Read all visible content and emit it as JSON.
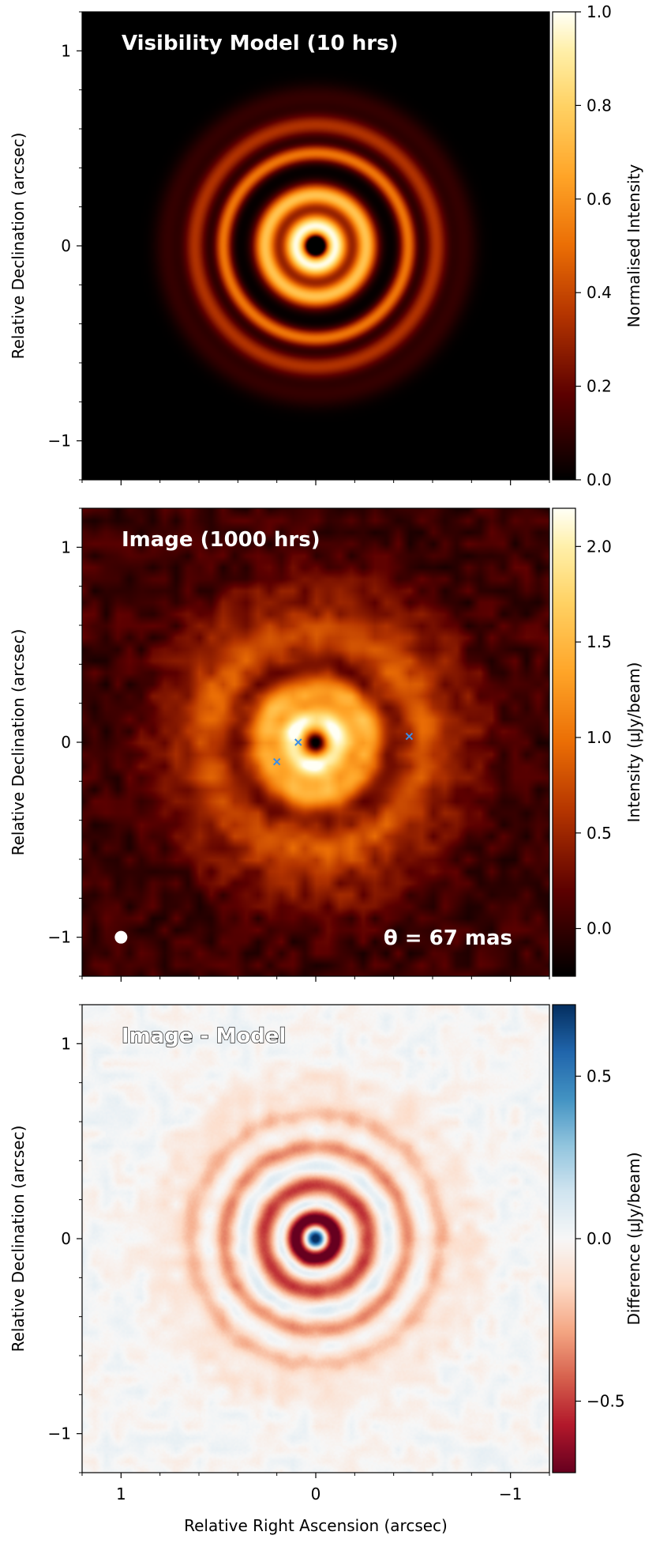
{
  "chart_data": [
    {
      "type": "heatmap",
      "title": "Visibility Model (10 hrs)",
      "xlabel": "",
      "ylabel": "Relative Declination (arcsec)",
      "xlim": [
        1.2,
        -1.2
      ],
      "ylim": [
        -1.2,
        1.2
      ],
      "yticks": [
        1,
        0,
        -1
      ],
      "ytick_labels": [
        "1",
        "0",
        "−1"
      ],
      "colormap": "afmhot",
      "colorbar": {
        "label": "Normalised Intensity",
        "range": [
          0.0,
          1.0
        ],
        "ticks": [
          0.0,
          0.2,
          0.4,
          0.6,
          0.8,
          1.0
        ],
        "tick_labels": [
          "0.0",
          "0.2",
          "0.4",
          "0.6",
          "0.8",
          "1.0"
        ]
      },
      "rings": [
        {
          "radius": 0.0,
          "width": 0.035,
          "amplitude": -1.0
        },
        {
          "radius": 0.1,
          "width": 0.045,
          "amplitude": 1.0
        },
        {
          "radius": 0.26,
          "width": 0.04,
          "amplitude": 0.75
        },
        {
          "radius": 0.475,
          "width": 0.03,
          "amplitude": 0.52
        },
        {
          "radius": 0.62,
          "width": 0.04,
          "amplitude": 0.34
        },
        {
          "radius": 0.76,
          "width": 0.05,
          "amplitude": 0.1
        }
      ]
    },
    {
      "type": "heatmap",
      "title": "Image (1000 hrs)",
      "xlabel": "",
      "ylabel": "Relative Declination (arcsec)",
      "xlim": [
        1.2,
        -1.2
      ],
      "ylim": [
        -1.2,
        1.2
      ],
      "yticks": [
        1,
        0,
        -1
      ],
      "ytick_labels": [
        "1",
        "0",
        "−1"
      ],
      "colormap": "afmhot",
      "colorbar": {
        "label": "Intensity (μJy/beam)",
        "range": [
          -0.25,
          2.2
        ],
        "ticks": [
          0.0,
          0.5,
          1.0,
          1.5,
          2.0
        ],
        "tick_labels": [
          "0.0",
          "0.5",
          "1.0",
          "1.5",
          "2.0"
        ]
      },
      "rings": [
        {
          "radius": 0.0,
          "width": 0.06,
          "amplitude": -1.4
        },
        {
          "radius": 0.1,
          "width": 0.065,
          "amplitude": 2.3
        },
        {
          "radius": 0.27,
          "width": 0.06,
          "amplitude": 1.25
        },
        {
          "radius": 0.55,
          "width": 0.09,
          "amplitude": 0.75
        },
        {
          "radius": 0.78,
          "width": 0.1,
          "amplitude": 0.28
        }
      ],
      "markers": [
        {
          "x": 0.09,
          "y": 0.0
        },
        {
          "x": 0.2,
          "y": -0.1
        },
        {
          "x": -0.48,
          "y": 0.03
        }
      ],
      "beam": {
        "x": 1.0,
        "y": -1.0
      },
      "annotation": "θ = 67 mas"
    },
    {
      "type": "heatmap",
      "title": "Image - Model",
      "xlabel": "Relative Right Ascension (arcsec)",
      "ylabel": "Relative Declination (arcsec)",
      "xlim": [
        1.2,
        -1.2
      ],
      "ylim": [
        -1.2,
        1.2
      ],
      "xticks": [
        1,
        0,
        -1
      ],
      "xtick_labels": [
        "1",
        "0",
        "−1"
      ],
      "yticks": [
        1,
        0,
        -1
      ],
      "ytick_labels": [
        "1",
        "0",
        "−1"
      ],
      "colormap": "RdBu",
      "colorbar": {
        "label": "Difference (μJy/beam)",
        "range": [
          -0.72,
          0.72
        ],
        "ticks": [
          -0.5,
          0.0,
          0.5
        ],
        "tick_labels": [
          "−0.5",
          "0.0",
          "0.5"
        ]
      },
      "rings": [
        {
          "radius": 0.0,
          "width": 0.035,
          "amplitude": 0.9
        },
        {
          "radius": 0.1,
          "width": 0.035,
          "amplitude": -0.85
        },
        {
          "radius": 0.18,
          "width": 0.02,
          "amplitude": 0.15
        },
        {
          "radius": 0.27,
          "width": 0.04,
          "amplitude": -0.5
        },
        {
          "radius": 0.37,
          "width": 0.025,
          "amplitude": 0.08
        },
        {
          "radius": 0.47,
          "width": 0.035,
          "amplitude": -0.32
        },
        {
          "radius": 0.56,
          "width": 0.03,
          "amplitude": 0.03
        },
        {
          "radius": 0.64,
          "width": 0.04,
          "amplitude": -0.22
        },
        {
          "radius": 0.8,
          "width": 0.07,
          "amplitude": -0.08
        }
      ]
    }
  ]
}
